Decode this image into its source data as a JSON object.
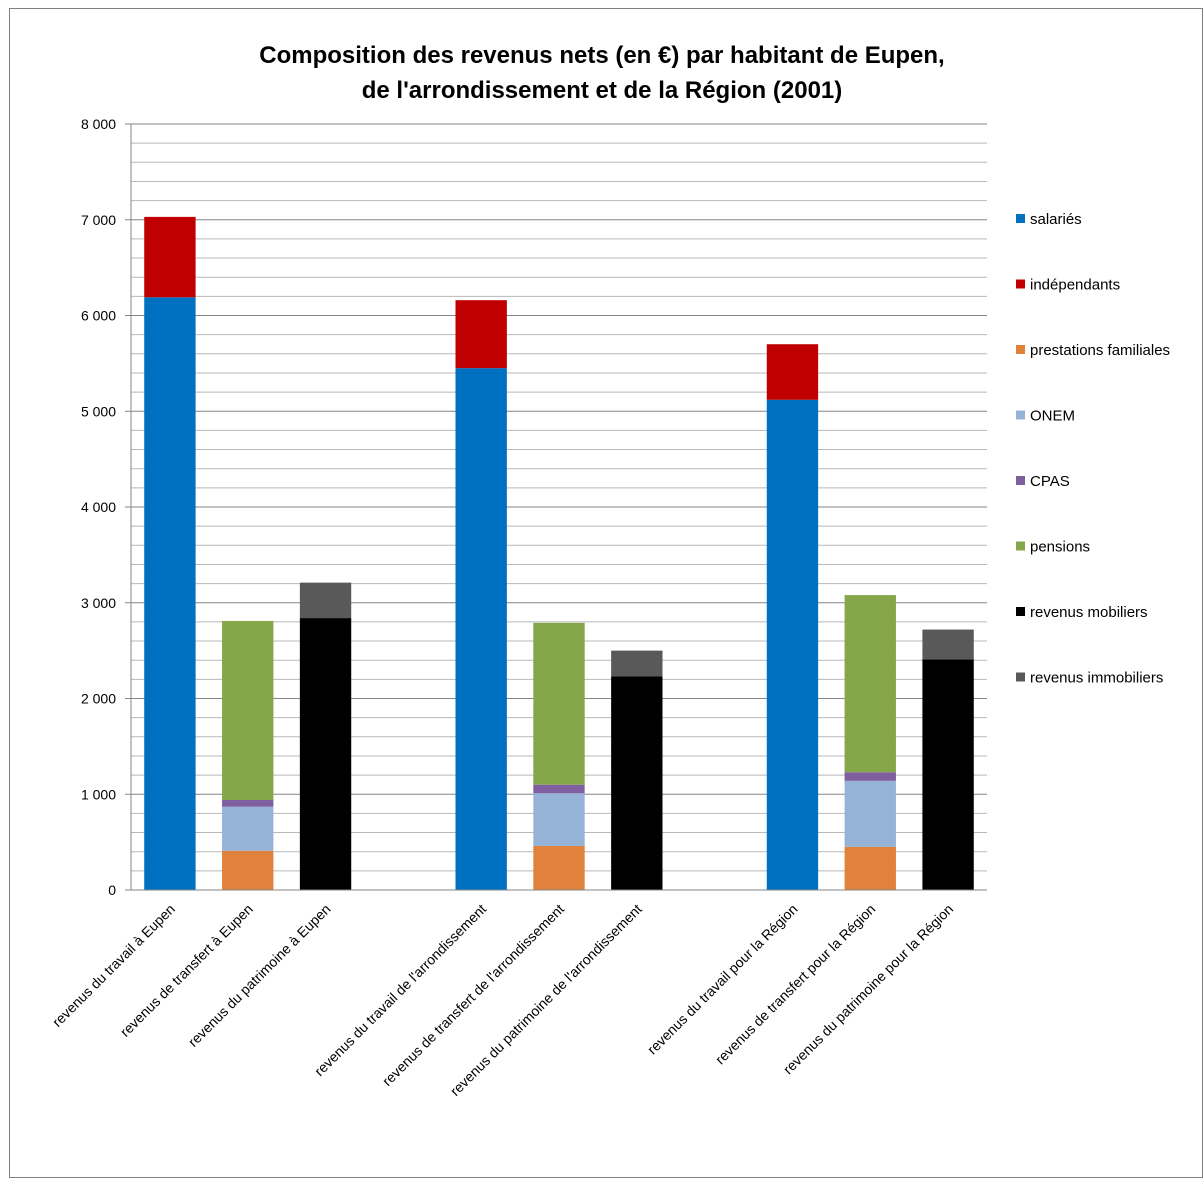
{
  "chart_data": {
    "type": "bar",
    "stacked": true,
    "title_line1": "Composition  des revenus nets (en €) par habitant de Eupen,",
    "title_line2": "de l'arrondissement  et de la Région (2001)",
    "xlabel": "",
    "ylabel": "",
    "ylim": [
      0,
      8000
    ],
    "grid": true,
    "legend_position": "right",
    "y_ticks": [
      {
        "value": 0,
        "label": "0"
      },
      {
        "value": 1000,
        "label": "1 000"
      },
      {
        "value": 2000,
        "label": "2 000"
      },
      {
        "value": 3000,
        "label": "3 000"
      },
      {
        "value": 4000,
        "label": "4 000"
      },
      {
        "value": 5000,
        "label": "5 000"
      },
      {
        "value": 6000,
        "label": "6 000"
      },
      {
        "value": 7000,
        "label": "7 000"
      },
      {
        "value": 8000,
        "label": "8 000"
      }
    ],
    "categories": [
      "revenus du travail à Eupen",
      "revenus de transfert à Eupen",
      "revenus du patrimoine à Eupen",
      "",
      "revenus du travail de l'arrondissement",
      "revenus de transfert de l'arrondissement",
      "revenus du patrimoine de l'arrondissement",
      "",
      "revenus du travail pour la Région",
      "revenus de transfert pour la Région",
      "revenus du patrimoine pour la Région"
    ],
    "series": [
      {
        "name": "salariés",
        "color": "#0070c0",
        "values": [
          6190,
          0,
          0,
          0,
          5450,
          0,
          0,
          0,
          5120,
          0,
          0
        ]
      },
      {
        "name": "indépendants",
        "color": "#c00000",
        "values": [
          840,
          0,
          0,
          0,
          710,
          0,
          0,
          0,
          580,
          0,
          0
        ]
      },
      {
        "name": "prestations familiales",
        "color": "#e0823c",
        "values": [
          0,
          410,
          0,
          0,
          0,
          460,
          0,
          0,
          0,
          450,
          0
        ]
      },
      {
        "name": "ONEM",
        "color": "#95b3d7",
        "values": [
          0,
          460,
          0,
          0,
          0,
          550,
          0,
          0,
          0,
          690,
          0
        ]
      },
      {
        "name": "CPAS",
        "color": "#7f5fa0",
        "values": [
          0,
          70,
          0,
          0,
          0,
          90,
          0,
          0,
          0,
          90,
          0
        ]
      },
      {
        "name": "pensions",
        "color": "#86a64a",
        "values": [
          0,
          1870,
          0,
          0,
          0,
          1690,
          0,
          0,
          0,
          1850,
          0
        ]
      },
      {
        "name": "revenus mobiliers",
        "color": "#000000",
        "values": [
          0,
          0,
          2840,
          0,
          0,
          0,
          2230,
          0,
          0,
          0,
          2410
        ]
      },
      {
        "name": "revenus immobiliers",
        "color": "#595959",
        "values": [
          0,
          0,
          370,
          0,
          0,
          0,
          270,
          0,
          0,
          0,
          310
        ]
      }
    ]
  }
}
